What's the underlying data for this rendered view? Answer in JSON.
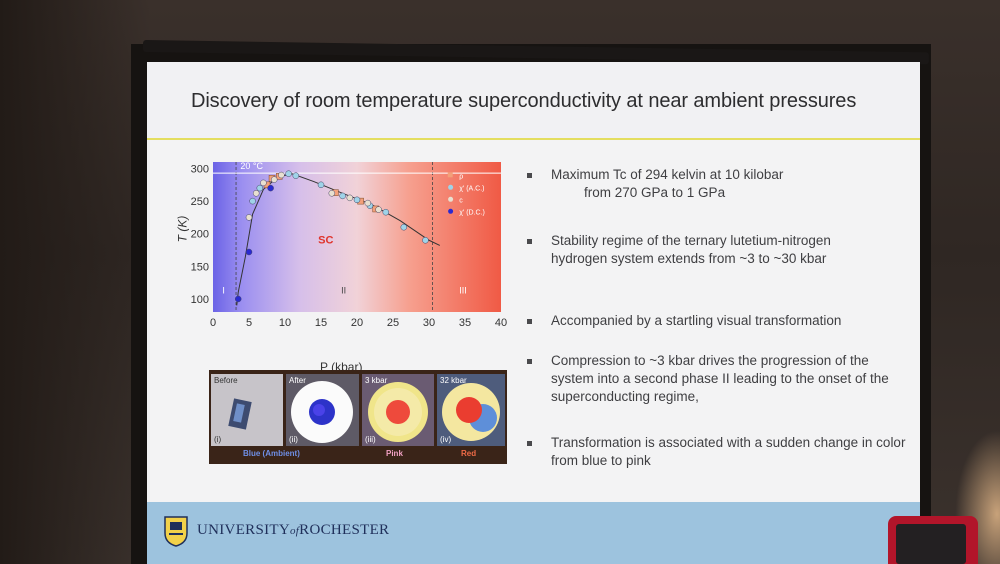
{
  "slide": {
    "title": "Discovery of room temperature  superconductivity at near ambient pressures"
  },
  "chart_data": {
    "type": "scatter",
    "xlabel": "P (kbar)",
    "ylabel": "T (K)",
    "xlim": [
      0,
      40
    ],
    "ylim": [
      80,
      310
    ],
    "x_ticks": [
      "0",
      "5",
      "10",
      "15",
      "20",
      "25",
      "30",
      "35",
      "40"
    ],
    "y_ticks": [
      "100",
      "150",
      "200",
      "250",
      "300"
    ],
    "annotations": {
      "temp_line": "20 °C",
      "region_sc": "SC",
      "region_I": "I",
      "region_II": "II",
      "region_III": "III"
    },
    "legend": [
      "ρ",
      "χ' (A.C.)",
      "c",
      "χ' (D.C.)"
    ],
    "series": [
      {
        "name": "ρ",
        "x": [
          7.5,
          8.2,
          9.2,
          17,
          20.5,
          22.6
        ],
        "y": [
          275,
          285,
          288,
          263,
          250,
          238
        ]
      },
      {
        "name": "χ' (A.C.)",
        "x": [
          5.5,
          6.5,
          10.5,
          11.5,
          15,
          18,
          20,
          21.8,
          24,
          26.5,
          29.5
        ],
        "y": [
          250,
          270,
          292,
          289,
          275,
          258,
          252,
          243,
          233,
          210,
          190
        ]
      },
      {
        "name": "c",
        "x": [
          5,
          6,
          7,
          8.5,
          9.5,
          16.5,
          19,
          21.5,
          23
        ],
        "y": [
          225,
          262,
          278,
          283,
          290,
          262,
          255,
          247,
          237
        ]
      },
      {
        "name": "χ' (D.C.)",
        "x": [
          3.5,
          5,
          8
        ],
        "y": [
          100,
          172,
          270
        ]
      }
    ]
  },
  "figure_strip": {
    "panels": [
      {
        "tag": "Before",
        "idx": "(i)"
      },
      {
        "tag": "After",
        "idx": "(ii)"
      },
      {
        "tag": "3 kbar",
        "idx": "(iii)"
      },
      {
        "tag": "32 kbar",
        "idx": "(iv)"
      }
    ],
    "captions": [
      {
        "text": "Blue (Ambient)",
        "color": "#6f8fe6"
      },
      {
        "text": "Pink",
        "color": "#f1a1c3"
      },
      {
        "text": "Red",
        "color": "#ef6b47"
      }
    ]
  },
  "bullets": [
    {
      "line1": "Maximum Tc of 294 kelvin at 10 kilobar",
      "line2": "from 270 GPa to 1 GPa"
    },
    {
      "text": "Stability regime of the ternary lutetium-nitrogen hydrogen system extends from ~3 to ~30 kbar"
    },
    {
      "text": "Accompanied by a startling visual transformation"
    },
    {
      "text": "Compression to ~3 kbar drives the progression of the system into a second phase II leading to the onset of the superconducting regime,"
    },
    {
      "text": "Transformation is associated with a sudden change in color from blue to pink"
    }
  ],
  "footer": {
    "brand_left": "UNIVERSITY",
    "brand_of": "of",
    "brand_right": "ROCHESTER"
  },
  "colors": {
    "title_rule": "#e4de5f",
    "footer_bg": "#9dc3de",
    "phase_blue": "#6b63e6",
    "phase_red": "#f05a45"
  }
}
